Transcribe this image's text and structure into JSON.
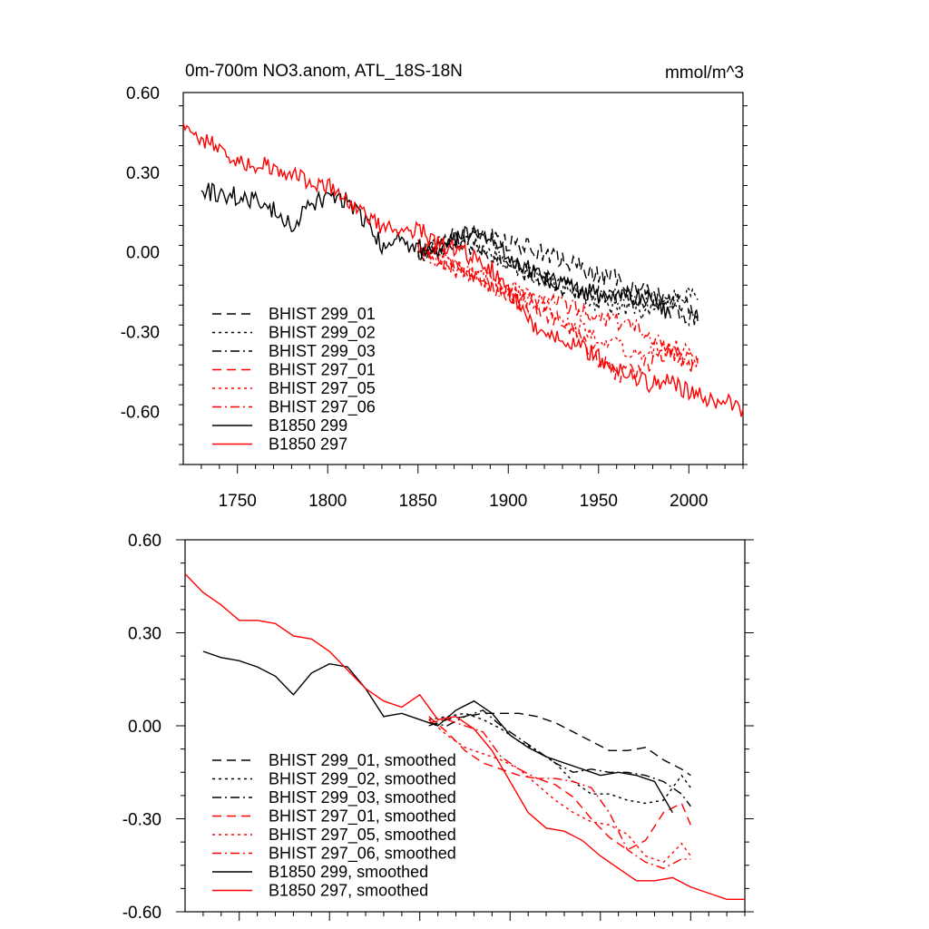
{
  "chart_data": [
    {
      "type": "line",
      "title": "0m-700m NO3.anom, ATL_18S-18N",
      "units": "mmol/m^3",
      "xlim": [
        1720,
        2030
      ],
      "ylim": [
        -0.8,
        0.6
      ],
      "x_ticks": [
        1750,
        1800,
        1850,
        1900,
        1950,
        2000
      ],
      "x_tick_labels": [
        "1750",
        "1800",
        "1850",
        "1900",
        "1950",
        "2000"
      ],
      "y_ticks": [
        0.6,
        0.3,
        0.0,
        -0.3,
        -0.6
      ],
      "y_tick_labels": [
        "0.60",
        "0.30",
        "0.00",
        "-0.30",
        "-0.60"
      ],
      "grid": false,
      "legend_position": "lower-left",
      "series": [
        {
          "name": "BHIST 299_01",
          "color": "#000000",
          "dash": "dashed",
          "x": [
            1850,
            1860,
            1870,
            1880,
            1890,
            1900,
            1910,
            1920,
            1930,
            1940,
            1950,
            1960,
            1970,
            1980,
            1990,
            2000,
            2005
          ],
          "y": [
            -0.02,
            0.03,
            0.06,
            0.08,
            0.06,
            0.03,
            0.02,
            -0.01,
            -0.03,
            -0.06,
            -0.09,
            -0.1,
            -0.13,
            -0.16,
            -0.18,
            -0.2,
            -0.25
          ]
        },
        {
          "name": "BHIST 299_02",
          "color": "#000000",
          "dash": "dotted",
          "x": [
            1850,
            1860,
            1870,
            1880,
            1890,
            1900,
            1910,
            1920,
            1930,
            1940,
            1950,
            1960,
            1970,
            1980,
            1990,
            2000,
            2005
          ],
          "y": [
            0.0,
            0.02,
            0.04,
            0.03,
            0.0,
            -0.05,
            -0.07,
            -0.1,
            -0.12,
            -0.16,
            -0.2,
            -0.2,
            -0.22,
            -0.22,
            -0.18,
            -0.15,
            -0.18
          ]
        },
        {
          "name": "BHIST 299_03",
          "color": "#000000",
          "dash": "dashdot",
          "x": [
            1850,
            1860,
            1870,
            1880,
            1890,
            1900,
            1910,
            1920,
            1930,
            1940,
            1950,
            1960,
            1970,
            1980,
            1990,
            2000,
            2005
          ],
          "y": [
            -0.01,
            0.01,
            0.03,
            0.02,
            0.0,
            -0.04,
            -0.08,
            -0.1,
            -0.13,
            -0.15,
            -0.15,
            -0.17,
            -0.17,
            -0.18,
            -0.2,
            -0.24,
            -0.26
          ]
        },
        {
          "name": "BHIST 297_01",
          "color": "#ff0000",
          "dash": "dashed",
          "x": [
            1850,
            1860,
            1870,
            1880,
            1890,
            1900,
            1910,
            1920,
            1930,
            1940,
            1950,
            1960,
            1970,
            1980,
            1990,
            2000,
            2005
          ],
          "y": [
            0.03,
            -0.02,
            -0.06,
            -0.1,
            -0.13,
            -0.17,
            -0.2,
            -0.23,
            -0.27,
            -0.33,
            -0.4,
            -0.46,
            -0.45,
            -0.41,
            -0.38,
            -0.39,
            -0.42
          ]
        },
        {
          "name": "BHIST 297_05",
          "color": "#ff0000",
          "dash": "dotted",
          "x": [
            1850,
            1860,
            1870,
            1880,
            1890,
            1900,
            1910,
            1920,
            1930,
            1940,
            1950,
            1960,
            1970,
            1980,
            1990,
            2000,
            2005
          ],
          "y": [
            0.02,
            -0.03,
            -0.05,
            -0.08,
            -0.1,
            -0.13,
            -0.17,
            -0.2,
            -0.26,
            -0.29,
            -0.31,
            -0.35,
            -0.39,
            -0.37,
            -0.35,
            -0.38,
            -0.4
          ]
        },
        {
          "name": "BHIST 297_06",
          "color": "#ff0000",
          "dash": "dashdot",
          "x": [
            1850,
            1860,
            1870,
            1880,
            1890,
            1900,
            1910,
            1920,
            1930,
            1940,
            1950,
            1960,
            1970,
            1980,
            1990,
            2000,
            2005
          ],
          "y": [
            0.01,
            -0.01,
            -0.04,
            -0.08,
            -0.12,
            -0.15,
            -0.18,
            -0.18,
            -0.2,
            -0.22,
            -0.24,
            -0.26,
            -0.27,
            -0.32,
            -0.38,
            -0.42,
            -0.43
          ]
        },
        {
          "name": "B1850 299",
          "color": "#000000",
          "dash": "solid",
          "x": [
            1730,
            1740,
            1750,
            1760,
            1770,
            1780,
            1790,
            1800,
            1810,
            1820,
            1830,
            1840,
            1850,
            1860,
            1870,
            1880,
            1890,
            1900,
            1910,
            1920,
            1930,
            1940,
            1950,
            1960,
            1970,
            1980,
            1990
          ],
          "y": [
            0.23,
            0.22,
            0.21,
            0.19,
            0.16,
            0.1,
            0.18,
            0.2,
            0.2,
            0.12,
            0.03,
            0.04,
            0.02,
            -0.01,
            0.04,
            0.08,
            0.05,
            -0.03,
            -0.06,
            -0.1,
            -0.12,
            -0.14,
            -0.16,
            -0.16,
            -0.17,
            -0.18,
            -0.25
          ]
        },
        {
          "name": "B1850 297",
          "color": "#ff0000",
          "dash": "solid",
          "x": [
            1720,
            1730,
            1740,
            1750,
            1760,
            1770,
            1780,
            1790,
            1800,
            1810,
            1820,
            1830,
            1840,
            1850,
            1860,
            1870,
            1880,
            1890,
            1900,
            1910,
            1920,
            1930,
            1940,
            1950,
            1960,
            1970,
            1980,
            1990,
            2000,
            2010,
            2020,
            2030
          ],
          "y": [
            0.49,
            0.43,
            0.39,
            0.34,
            0.33,
            0.32,
            0.29,
            0.27,
            0.25,
            0.2,
            0.15,
            0.1,
            0.06,
            0.09,
            0.03,
            0.02,
            -0.02,
            -0.06,
            -0.15,
            -0.24,
            -0.31,
            -0.33,
            -0.35,
            -0.4,
            -0.45,
            -0.47,
            -0.5,
            -0.49,
            -0.53,
            -0.55,
            -0.56,
            -0.59
          ]
        }
      ]
    },
    {
      "type": "line",
      "xlim": [
        1720,
        2030
      ],
      "ylim": [
        -0.6,
        0.6
      ],
      "y_ticks": [
        0.6,
        0.3,
        0.0,
        -0.3,
        -0.6
      ],
      "y_tick_labels": [
        "0.60",
        "0.30",
        "0.00",
        "-0.30",
        "-0.60"
      ],
      "grid": false,
      "legend_position": "lower-left",
      "series": [
        {
          "name": "BHIST 299_01, smoothed",
          "color": "#000000",
          "dash": "dashed",
          "x": [
            1855,
            1865,
            1875,
            1885,
            1895,
            1905,
            1915,
            1925,
            1935,
            1945,
            1955,
            1965,
            1975,
            1985,
            1995,
            2000
          ],
          "y": [
            0.0,
            0.02,
            0.03,
            0.04,
            0.04,
            0.04,
            0.03,
            0.01,
            -0.02,
            -0.05,
            -0.08,
            -0.08,
            -0.07,
            -0.11,
            -0.14,
            -0.16
          ]
        },
        {
          "name": "BHIST 299_02, smoothed",
          "color": "#000000",
          "dash": "dotted",
          "x": [
            1855,
            1865,
            1875,
            1885,
            1895,
            1905,
            1915,
            1925,
            1935,
            1945,
            1955,
            1965,
            1975,
            1985,
            1995,
            2000
          ],
          "y": [
            0.02,
            0.03,
            0.04,
            0.02,
            -0.01,
            -0.05,
            -0.08,
            -0.12,
            -0.18,
            -0.22,
            -0.22,
            -0.24,
            -0.25,
            -0.24,
            -0.16,
            -0.2
          ]
        },
        {
          "name": "BHIST 299_03, smoothed",
          "color": "#000000",
          "dash": "dashdot",
          "x": [
            1855,
            1865,
            1875,
            1885,
            1895,
            1905,
            1915,
            1925,
            1935,
            1945,
            1955,
            1965,
            1975,
            1985,
            1995,
            2000
          ],
          "y": [
            0.01,
            0.0,
            0.03,
            0.05,
            0.0,
            -0.04,
            -0.08,
            -0.12,
            -0.15,
            -0.14,
            -0.15,
            -0.15,
            -0.16,
            -0.18,
            -0.22,
            -0.26
          ]
        },
        {
          "name": "BHIST 297_01, smoothed",
          "color": "#ff0000",
          "dash": "dashed",
          "x": [
            1855,
            1865,
            1875,
            1885,
            1895,
            1905,
            1915,
            1925,
            1935,
            1945,
            1955,
            1965,
            1975,
            1985,
            1995,
            2000
          ],
          "y": [
            0.03,
            -0.02,
            -0.08,
            -0.12,
            -0.14,
            -0.16,
            -0.17,
            -0.19,
            -0.23,
            -0.3,
            -0.36,
            -0.4,
            -0.37,
            -0.28,
            -0.25,
            -0.32
          ]
        },
        {
          "name": "BHIST 297_05, smoothed",
          "color": "#ff0000",
          "dash": "dotted",
          "x": [
            1855,
            1865,
            1875,
            1885,
            1895,
            1905,
            1915,
            1925,
            1935,
            1945,
            1955,
            1965,
            1975,
            1985,
            1995,
            2000
          ],
          "y": [
            0.02,
            -0.03,
            -0.07,
            -0.09,
            -0.11,
            -0.14,
            -0.19,
            -0.24,
            -0.28,
            -0.31,
            -0.32,
            -0.35,
            -0.42,
            -0.44,
            -0.38,
            -0.42
          ]
        },
        {
          "name": "BHIST 297_06, smoothed",
          "color": "#ff0000",
          "dash": "dashdot",
          "x": [
            1855,
            1865,
            1875,
            1885,
            1895,
            1905,
            1915,
            1925,
            1935,
            1945,
            1955,
            1965,
            1975,
            1985,
            1995,
            2000
          ],
          "y": [
            0.01,
            0.02,
            0.0,
            -0.02,
            -0.1,
            -0.14,
            -0.17,
            -0.17,
            -0.18,
            -0.2,
            -0.28,
            -0.4,
            -0.44,
            -0.46,
            -0.43,
            -0.43
          ]
        },
        {
          "name": "B1850 299, smoothed",
          "color": "#000000",
          "dash": "solid",
          "x": [
            1730,
            1740,
            1750,
            1760,
            1770,
            1780,
            1790,
            1800,
            1810,
            1820,
            1830,
            1840,
            1850,
            1860,
            1870,
            1880,
            1890,
            1900,
            1910,
            1920,
            1930,
            1940,
            1950,
            1960,
            1970,
            1980,
            1990
          ],
          "y": [
            0.24,
            0.22,
            0.21,
            0.19,
            0.16,
            0.1,
            0.17,
            0.2,
            0.19,
            0.12,
            0.03,
            0.04,
            0.02,
            0.0,
            0.05,
            0.08,
            0.04,
            -0.03,
            -0.07,
            -0.1,
            -0.12,
            -0.14,
            -0.16,
            -0.15,
            -0.16,
            -0.18,
            -0.28
          ]
        },
        {
          "name": "B1850 297, smoothed",
          "color": "#ff0000",
          "dash": "solid",
          "x": [
            1720,
            1730,
            1740,
            1750,
            1760,
            1770,
            1780,
            1790,
            1800,
            1810,
            1820,
            1830,
            1840,
            1850,
            1860,
            1870,
            1880,
            1890,
            1900,
            1910,
            1920,
            1930,
            1940,
            1950,
            1960,
            1970,
            1980,
            1990,
            2000,
            2010,
            2020,
            2030
          ],
          "y": [
            0.49,
            0.43,
            0.39,
            0.34,
            0.34,
            0.33,
            0.29,
            0.28,
            0.24,
            0.18,
            0.12,
            0.08,
            0.06,
            0.1,
            0.02,
            0.03,
            -0.01,
            -0.08,
            -0.18,
            -0.28,
            -0.33,
            -0.34,
            -0.37,
            -0.42,
            -0.46,
            -0.5,
            -0.5,
            -0.49,
            -0.52,
            -0.54,
            -0.56,
            -0.56
          ]
        }
      ]
    }
  ]
}
